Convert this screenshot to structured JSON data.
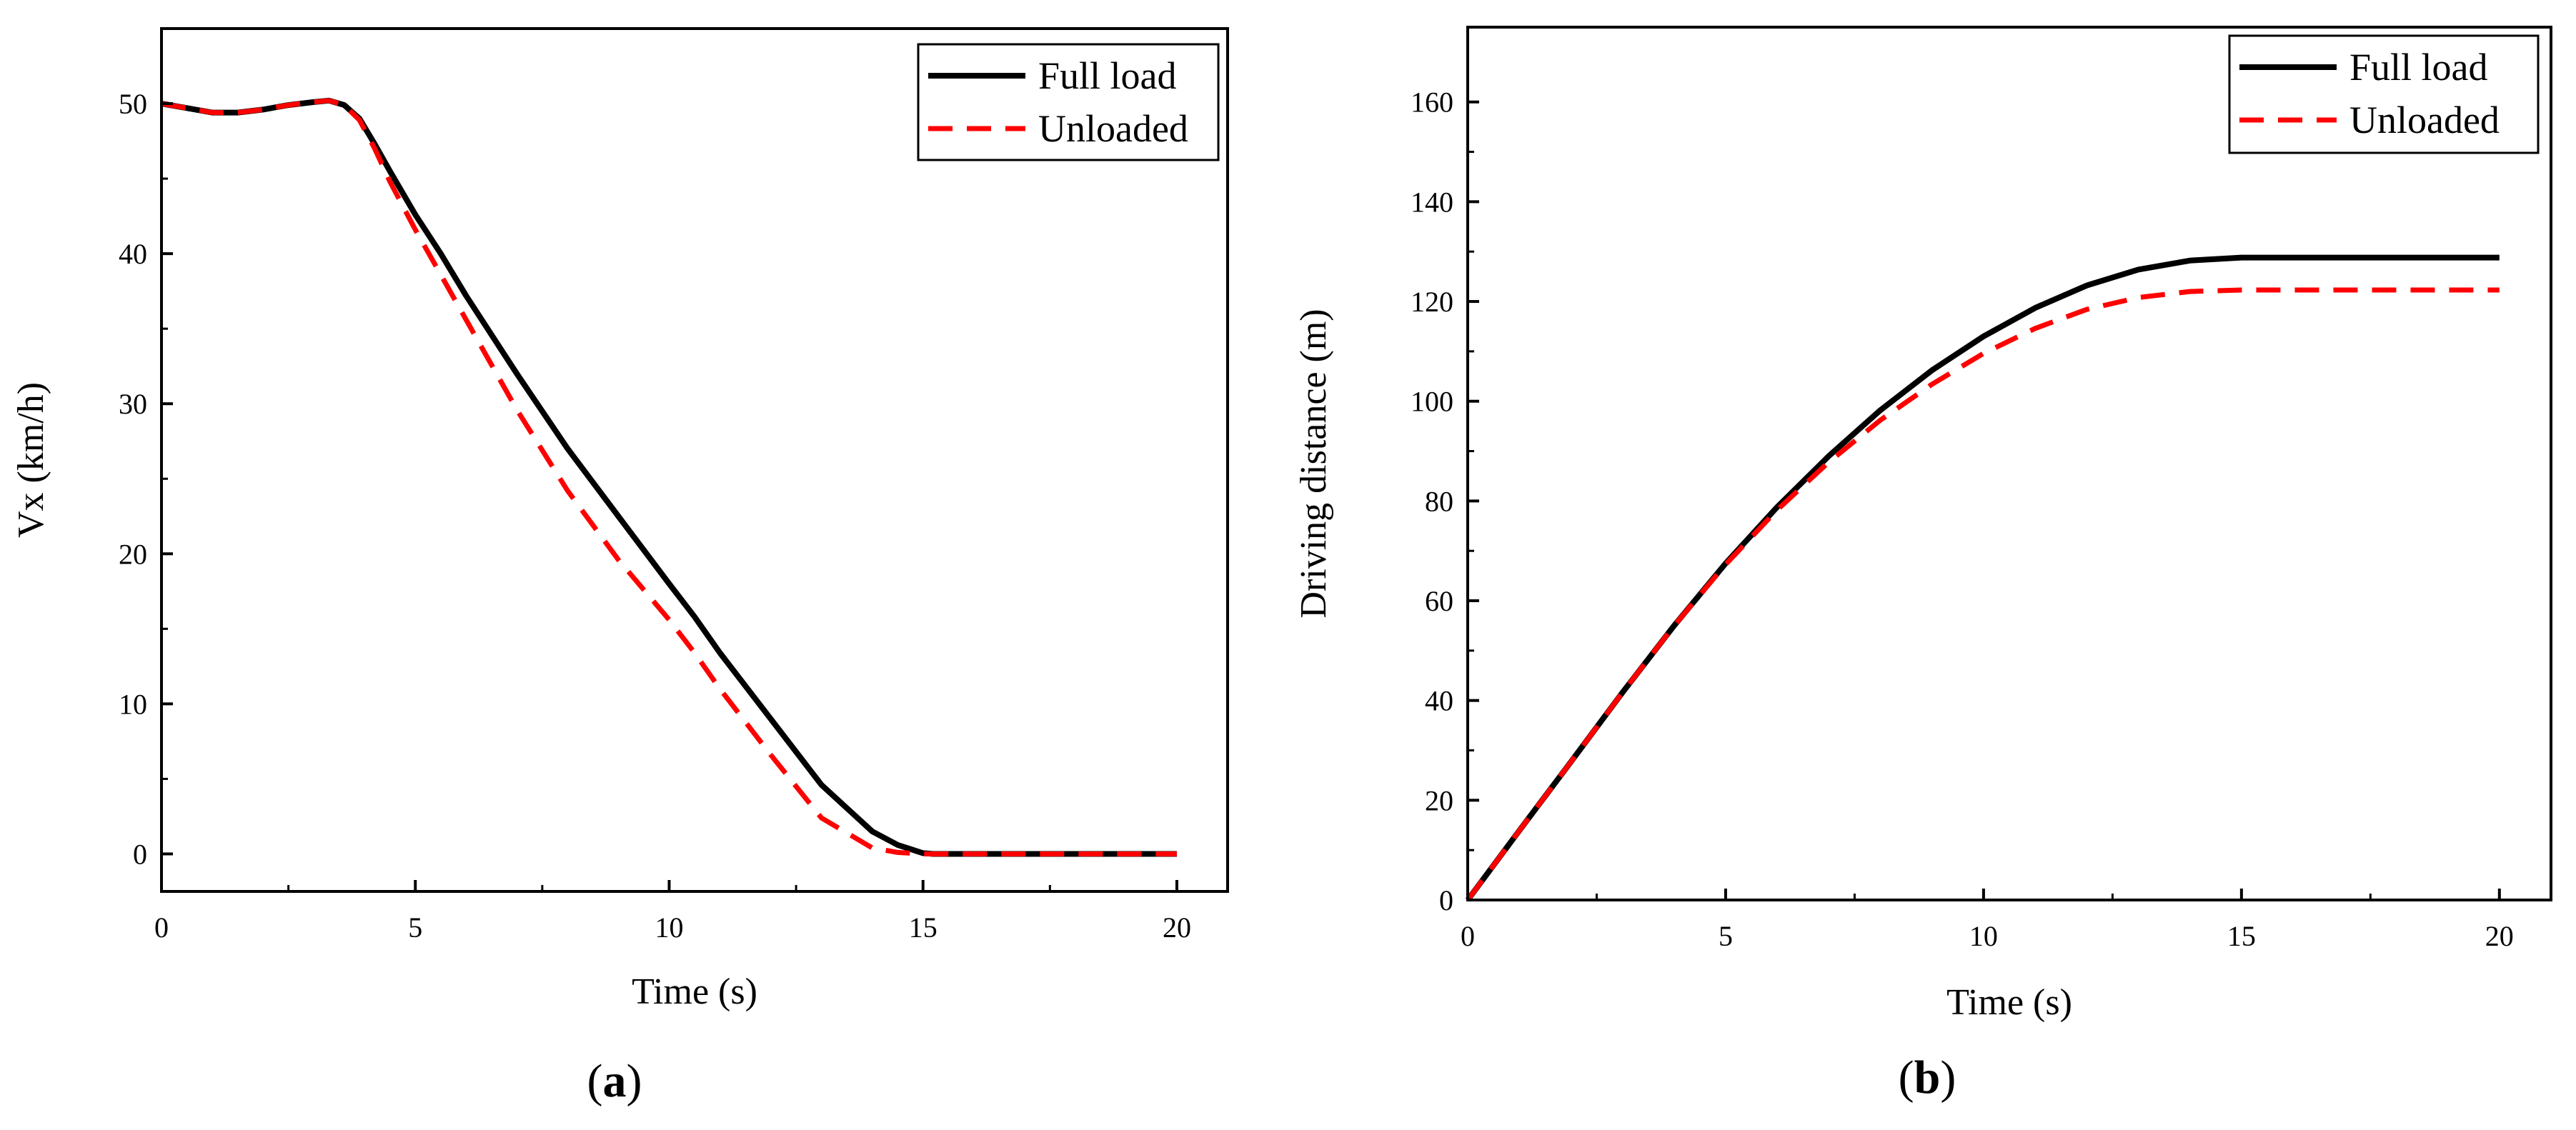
{
  "colors": {
    "full_load": "#000000",
    "unloaded": "#ff0000",
    "axis": "#000000",
    "background": "#ffffff"
  },
  "chart_data": [
    {
      "type": "line",
      "panel_label": "(a)",
      "panel_letter": "a",
      "xlabel": "Time (s)",
      "ylabel": "Vx (km/h)",
      "xlim": [
        0,
        21
      ],
      "ylim": [
        -2.5,
        55
      ],
      "xticks": [
        0,
        5,
        10,
        15,
        20
      ],
      "yticks": [
        0,
        10,
        20,
        30,
        40,
        50
      ],
      "legend_position": "top-right",
      "grid": false,
      "series": [
        {
          "name": "Full load",
          "style": "solid",
          "x": [
            0,
            0.5,
            1,
            1.5,
            2,
            2.5,
            3,
            3.3,
            3.6,
            3.9,
            4.2,
            4.5,
            5,
            5.5,
            6,
            7,
            8,
            9,
            10,
            10.5,
            11,
            12,
            13,
            14,
            14.5,
            15,
            15.2,
            16,
            17,
            18,
            19,
            20
          ],
          "y": [
            50,
            49.7,
            49.4,
            49.4,
            49.6,
            49.9,
            50.1,
            50.2,
            49.9,
            49.0,
            47.3,
            45.5,
            42.6,
            40.0,
            37.2,
            32.0,
            27.0,
            22.5,
            18.0,
            15.8,
            13.4,
            9.0,
            4.6,
            1.5,
            0.6,
            0.05,
            0,
            0,
            0,
            0,
            0,
            0
          ]
        },
        {
          "name": "Unloaded",
          "style": "dashed",
          "x": [
            0,
            0.5,
            1,
            1.5,
            2,
            2.5,
            3,
            3.3,
            3.6,
            3.9,
            4.2,
            4.5,
            5,
            5.5,
            6,
            7,
            8,
            9,
            10,
            10.5,
            11,
            12,
            13,
            14,
            14.5,
            15,
            15.2,
            16,
            17,
            18,
            19,
            20
          ],
          "y": [
            50,
            49.7,
            49.4,
            49.4,
            49.6,
            49.9,
            50.1,
            50.2,
            49.9,
            48.9,
            47.0,
            44.8,
            41.6,
            38.6,
            35.6,
            29.6,
            24.2,
            19.6,
            15.6,
            13.4,
            11.0,
            6.6,
            2.4,
            0.4,
            0.1,
            0,
            0,
            0,
            0,
            0,
            0,
            0
          ]
        }
      ]
    },
    {
      "type": "line",
      "panel_label": "(b)",
      "panel_letter": "b",
      "xlabel": "Time (s)",
      "ylabel": "Driving distance (m)",
      "xlim": [
        0,
        21
      ],
      "ylim": [
        0,
        175
      ],
      "xticks": [
        0,
        5,
        10,
        15,
        20
      ],
      "yticks": [
        0,
        20,
        40,
        60,
        80,
        100,
        120,
        140,
        160
      ],
      "legend_position": "top-right",
      "grid": false,
      "series": [
        {
          "name": "Full load",
          "style": "solid",
          "x": [
            0,
            1,
            2,
            3,
            4,
            5,
            6,
            7,
            8,
            9,
            10,
            11,
            12,
            13,
            14,
            15,
            16,
            17,
            18,
            19,
            20
          ],
          "y": [
            0,
            13.9,
            27.7,
            41.6,
            55.0,
            67.5,
            78.8,
            89.0,
            98.2,
            106.2,
            113.0,
            118.7,
            123.2,
            126.4,
            128.2,
            128.8,
            128.8,
            128.8,
            128.8,
            128.8,
            128.8
          ]
        },
        {
          "name": "Unloaded",
          "style": "dashed",
          "x": [
            0,
            1,
            2,
            3,
            4,
            5,
            6,
            7,
            8,
            9,
            10,
            11,
            12,
            13,
            14,
            15,
            16,
            17,
            18,
            19,
            20
          ],
          "y": [
            0,
            13.9,
            27.7,
            41.6,
            55.0,
            67.3,
            78.2,
            87.8,
            96.2,
            103.4,
            109.6,
            114.6,
            118.4,
            120.8,
            122.0,
            122.3,
            122.3,
            122.3,
            122.3,
            122.3,
            122.3
          ]
        }
      ]
    }
  ]
}
